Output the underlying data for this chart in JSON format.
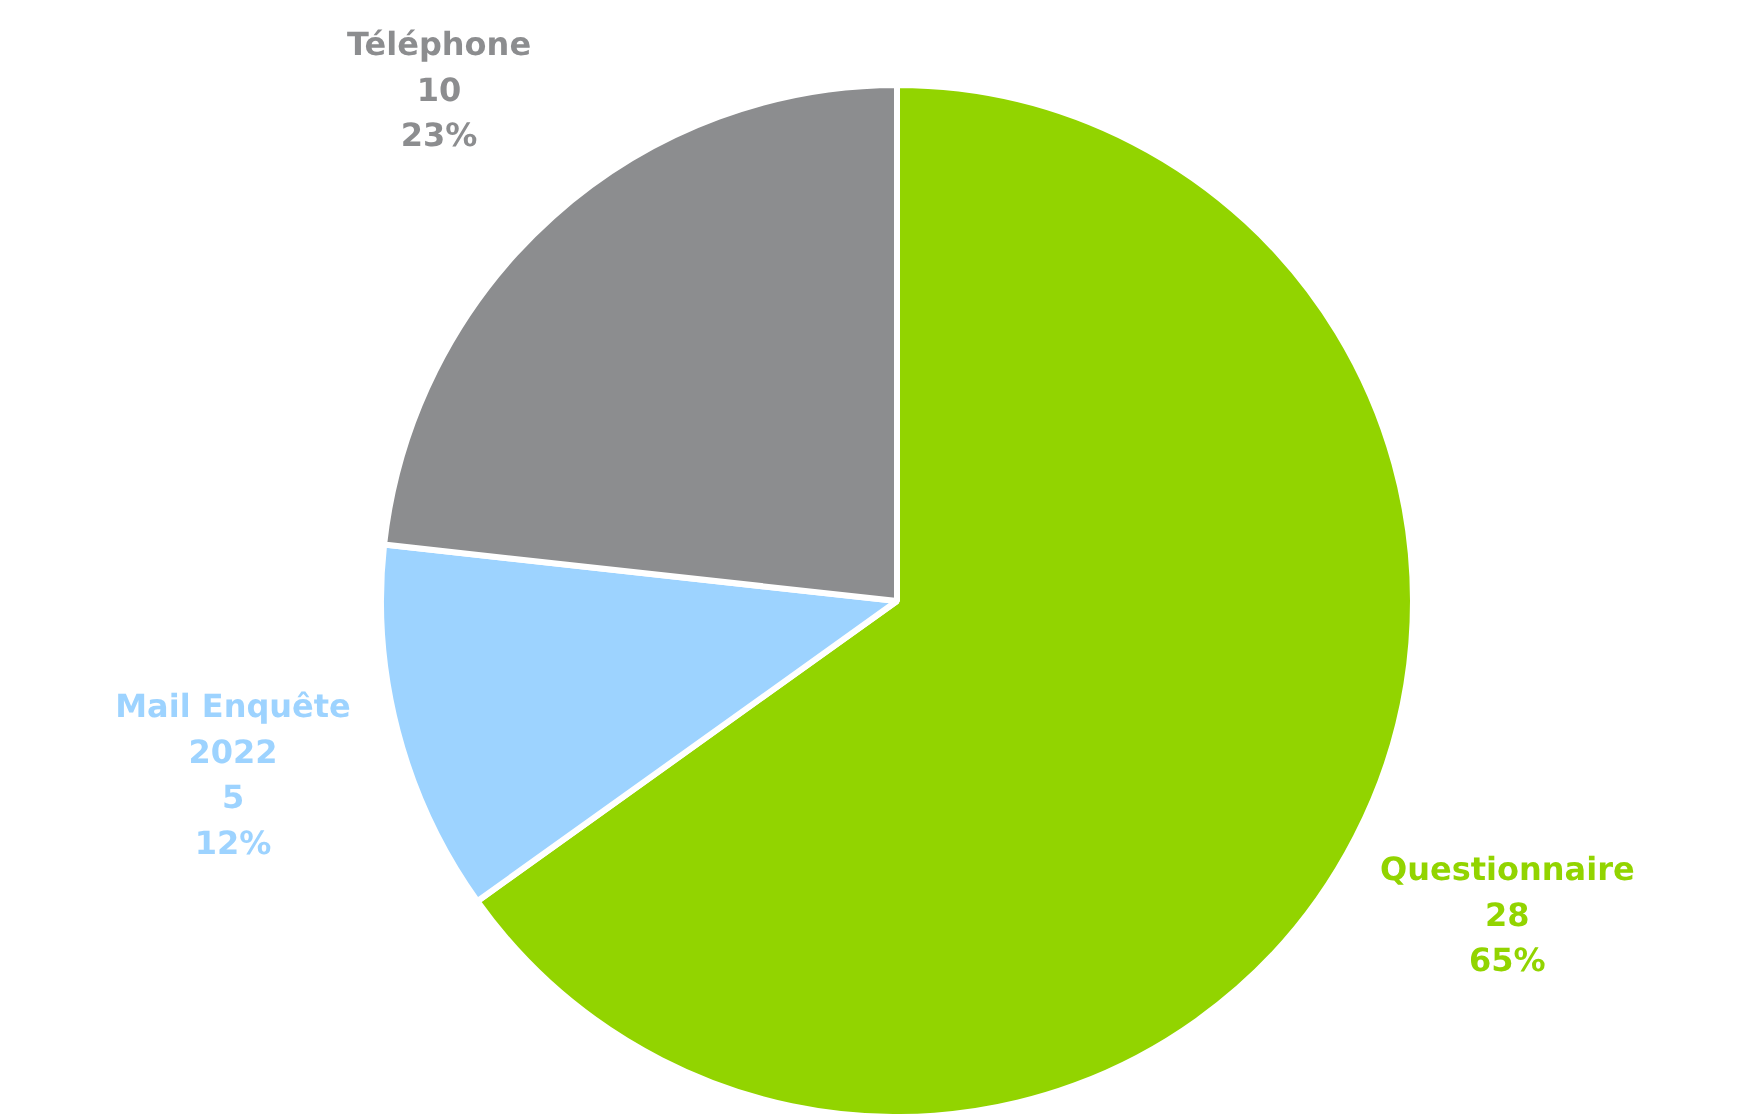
{
  "chart_data": {
    "type": "pie",
    "categories": [
      "Questionnaire",
      "Mail Enquête 2022",
      "Téléphone"
    ],
    "values": [
      28,
      5,
      10
    ],
    "colors": [
      "#92d400",
      "#9dd3ff",
      "#8c8d8f"
    ],
    "value_labels": [
      "28\n65%",
      "5\n12%",
      "10\n23%"
    ],
    "legend": false
  }
}
